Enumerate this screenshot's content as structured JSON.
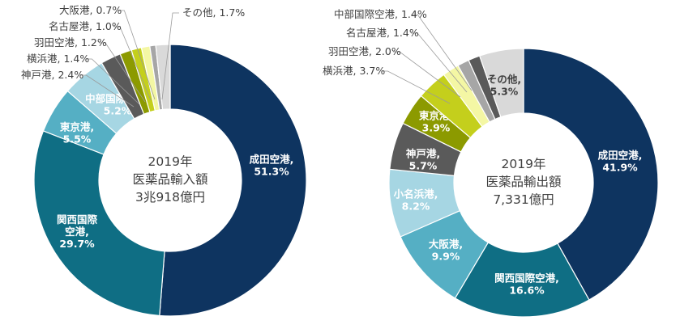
{
  "colors": {
    "navy": "#0E3460",
    "teal": "#0F6E84",
    "blue": "#55AFC4",
    "lightblue": "#A6D6E3",
    "darkgray": "#5A5A5A",
    "olive": "#8C9A00",
    "yellowgreen": "#C4CF1C",
    "paleyellow": "#F4F7A4",
    "gray": "#A6A6A6",
    "lightgray": "#D9D9D9"
  },
  "chart_data": [
    {
      "type": "pie",
      "donut": true,
      "center_text": [
        "2019年",
        "医薬品輸入額",
        "3兆918億円"
      ],
      "slices": [
        {
          "name": "成田空港",
          "value": 51.3,
          "label": [
            "成田空港,",
            "51.3%"
          ],
          "color": "navy",
          "text": "light"
        },
        {
          "name": "関西国際空港",
          "value": 29.7,
          "label": [
            "関西国際",
            "空港,",
            "29.7%"
          ],
          "color": "teal",
          "text": "light"
        },
        {
          "name": "東京港",
          "value": 5.5,
          "label": [
            "東京港,",
            "5.5%"
          ],
          "color": "blue",
          "text": "light"
        },
        {
          "name": "中部国際空港",
          "value": 5.2,
          "label": [
            "中部国際空港,",
            "5.2%"
          ],
          "color": "lightblue",
          "text": "light"
        },
        {
          "name": "神戸港",
          "value": 2.4,
          "label": [
            "神戸港, 2.4%"
          ],
          "color": "darkgray",
          "outside": true
        },
        {
          "name": "横浜港",
          "value": 1.4,
          "label": [
            "横浜港, 1.4%"
          ],
          "color": "olive",
          "outside": true
        },
        {
          "name": "羽田空港",
          "value": 1.2,
          "label": [
            "羽田空港, 1.2%"
          ],
          "color": "yellowgreen",
          "outside": true
        },
        {
          "name": "名古屋港",
          "value": 1.0,
          "label": [
            "名古屋港, 1.0%"
          ],
          "color": "paleyellow",
          "outside": true
        },
        {
          "name": "大阪港",
          "value": 0.7,
          "label": [
            "大阪港, 0.7%"
          ],
          "color": "gray",
          "outside": true
        },
        {
          "name": "その他",
          "value": 1.7,
          "label": [
            "その他, 1.7%"
          ],
          "color": "lightgray",
          "outside": true
        }
      ]
    },
    {
      "type": "pie",
      "donut": true,
      "center_text": [
        "2019年",
        "医薬品輸出額",
        "7,331億円"
      ],
      "slices": [
        {
          "name": "成田空港",
          "value": 41.9,
          "label": [
            "成田空港,",
            "41.9%"
          ],
          "color": "navy",
          "text": "light"
        },
        {
          "name": "関西国際空港",
          "value": 16.6,
          "label": [
            "関西国際空港,",
            "16.6%"
          ],
          "color": "teal",
          "text": "light"
        },
        {
          "name": "大阪港",
          "value": 9.9,
          "label": [
            "大阪港,",
            "9.9%"
          ],
          "color": "blue",
          "text": "light"
        },
        {
          "name": "小名浜港",
          "value": 8.2,
          "label": [
            "小名浜港,",
            "8.2%"
          ],
          "color": "lightblue",
          "text": "light"
        },
        {
          "name": "神戸港",
          "value": 5.7,
          "label": [
            "神戸港,",
            "5.7%"
          ],
          "color": "darkgray",
          "text": "light"
        },
        {
          "name": "東京港",
          "value": 3.9,
          "label": [
            "東京港,",
            "3.9%"
          ],
          "color": "olive",
          "text": "light"
        },
        {
          "name": "横浜港",
          "value": 3.7,
          "label": [
            "横浜港, 3.7%"
          ],
          "color": "yellowgreen",
          "outside": true
        },
        {
          "name": "羽田空港",
          "value": 2.0,
          "label": [
            "羽田空港, 2.0%"
          ],
          "color": "paleyellow",
          "outside": true
        },
        {
          "name": "名古屋港",
          "value": 1.4,
          "label": [
            "名古屋港, 1.4%"
          ],
          "color": "gray",
          "outside": true
        },
        {
          "name": "中部国際空港",
          "value": 1.4,
          "label": [
            "中部国際空港, 1.4%"
          ],
          "color": "darkgray",
          "outside": true
        },
        {
          "name": "その他",
          "value": 5.3,
          "label": [
            "その他,",
            "5.3%"
          ],
          "color": "lightgray",
          "text": "dark"
        }
      ]
    }
  ]
}
